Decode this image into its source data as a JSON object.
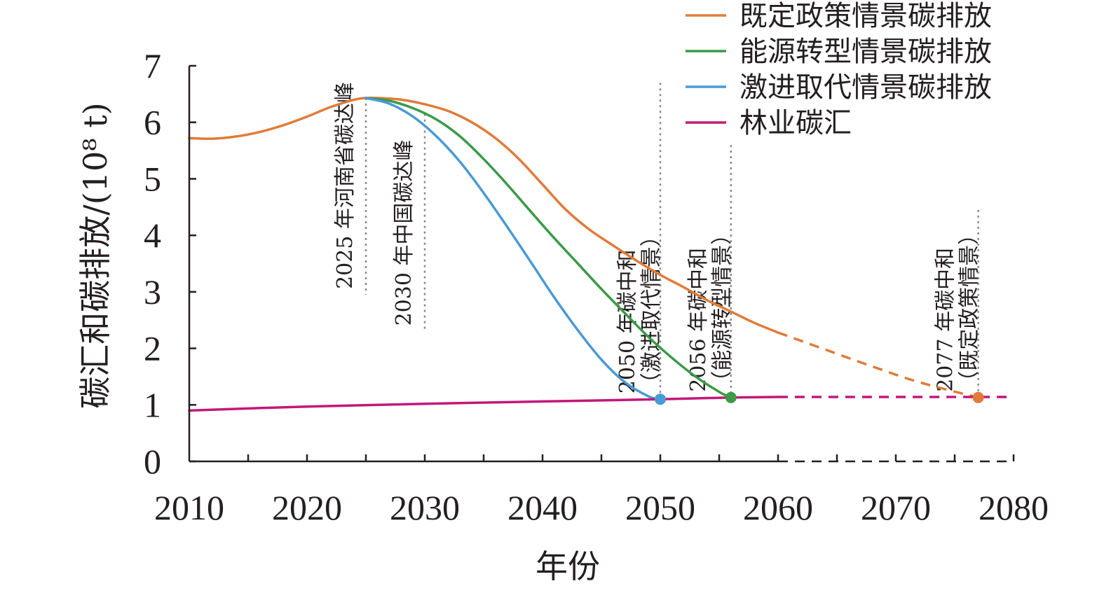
{
  "chart_data": {
    "type": "line",
    "xlabel": "年份",
    "ylabel": "碳汇和碳排放/(10⁸ t)",
    "xlim": [
      2010,
      2080
    ],
    "ylim": [
      0,
      7
    ],
    "xticks": [
      "2010",
      "2020",
      "2030",
      "2040",
      "2050",
      "2060",
      "2070",
      "2080"
    ],
    "yticks": [
      "0",
      "1",
      "2",
      "3",
      "4",
      "5",
      "6",
      "7"
    ],
    "legend_position": "top-right",
    "grid": false,
    "colors": {
      "policy": "#e07b39",
      "transition": "#3a9a48",
      "aggressive": "#4a9ad4",
      "sink": "#c2187a",
      "axis": "#231f20",
      "guide": "#8c8c8c"
    },
    "series": [
      {
        "name": "既定政策情景碳排放",
        "x": [
          2010,
          2012,
          2014,
          2016,
          2018,
          2020,
          2022,
          2024,
          2025,
          2026,
          2028,
          2030,
          2032,
          2034,
          2036,
          2038,
          2040,
          2042,
          2044,
          2046,
          2048,
          2050,
          2052,
          2054,
          2056,
          2058,
          2060
        ],
        "y": [
          5.72,
          5.71,
          5.75,
          5.83,
          5.95,
          6.1,
          6.27,
          6.4,
          6.43,
          6.43,
          6.4,
          6.32,
          6.2,
          6.0,
          5.72,
          5.35,
          4.9,
          4.45,
          4.1,
          3.82,
          3.55,
          3.3,
          3.08,
          2.85,
          2.65,
          2.45,
          2.28
        ],
        "projection": {
          "x": [
            2060,
            2064,
            2068,
            2072,
            2077
          ],
          "y": [
            2.28,
            1.98,
            1.68,
            1.4,
            1.13
          ]
        }
      },
      {
        "name": "能源转型情景碳排放",
        "x": [
          2025,
          2027,
          2029,
          2031,
          2033,
          2035,
          2037,
          2039,
          2041,
          2043,
          2045,
          2047,
          2049,
          2051,
          2053,
          2055,
          2056
        ],
        "y": [
          6.43,
          6.38,
          6.25,
          6.05,
          5.75,
          5.35,
          4.9,
          4.42,
          3.95,
          3.5,
          3.05,
          2.62,
          2.2,
          1.83,
          1.5,
          1.23,
          1.13
        ]
      },
      {
        "name": "激进取代情景碳排放",
        "x": [
          2025,
          2027,
          2029,
          2031,
          2033,
          2035,
          2037,
          2039,
          2041,
          2043,
          2045,
          2047,
          2049,
          2050
        ],
        "y": [
          6.43,
          6.33,
          6.1,
          5.75,
          5.3,
          4.75,
          4.15,
          3.53,
          2.9,
          2.32,
          1.8,
          1.4,
          1.15,
          1.1
        ]
      },
      {
        "name": "林业碳汇",
        "x": [
          2010,
          2020,
          2030,
          2040,
          2050,
          2056,
          2060
        ],
        "y": [
          0.9,
          0.97,
          1.02,
          1.06,
          1.1,
          1.13,
          1.14
        ],
        "projection": {
          "x": [
            2060,
            2080
          ],
          "y": [
            1.14,
            1.14
          ]
        }
      }
    ],
    "neutrality_points": [
      {
        "x": 2050,
        "y": 1.1,
        "series": 2
      },
      {
        "x": 2056,
        "y": 1.13,
        "series": 1
      },
      {
        "x": 2077,
        "y": 1.13,
        "series": 0
      }
    ],
    "annotations": [
      {
        "x": 2025,
        "y_top": 6.43,
        "y_bottom": 2.95,
        "lines": [
          "2025 年河南省碳达峰"
        ]
      },
      {
        "x": 2030,
        "y_top": 6.15,
        "y_bottom": 2.3,
        "lines": [
          "2030 年中国碳达峰"
        ]
      },
      {
        "x": 2050,
        "y_top": 6.7,
        "y_bottom": 1.1,
        "lines": [
          "2050 年碳中和",
          "（激进取代情景）"
        ]
      },
      {
        "x": 2056,
        "y_top": 5.6,
        "y_bottom": 1.13,
        "lines": [
          "2056 年碳中和",
          "（能源转型情景）"
        ]
      },
      {
        "x": 2077,
        "y_top": 4.45,
        "y_bottom": 1.13,
        "lines": [
          "2077 年碳中和",
          "（既定政策情景）"
        ]
      }
    ]
  }
}
